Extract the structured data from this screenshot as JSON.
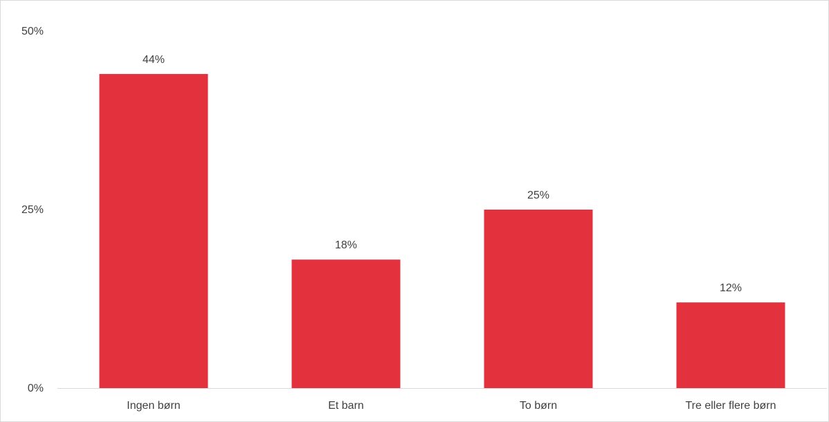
{
  "chart_data": {
    "type": "bar",
    "categories": [
      "Ingen børn",
      "Et barn",
      "To børn",
      "Tre eller flere børn"
    ],
    "values": [
      44,
      18,
      25,
      12
    ],
    "data_labels": [
      "44%",
      "18%",
      "25%",
      "12%"
    ],
    "y_ticks": [
      {
        "value": 0,
        "label": "0%"
      },
      {
        "value": 25,
        "label": "25%"
      },
      {
        "value": 50,
        "label": "50%"
      }
    ],
    "ylim": [
      0,
      50
    ],
    "grid": false,
    "legend": "none",
    "bar_color": "#e3313d",
    "axis_color": "#d9d9d9"
  }
}
